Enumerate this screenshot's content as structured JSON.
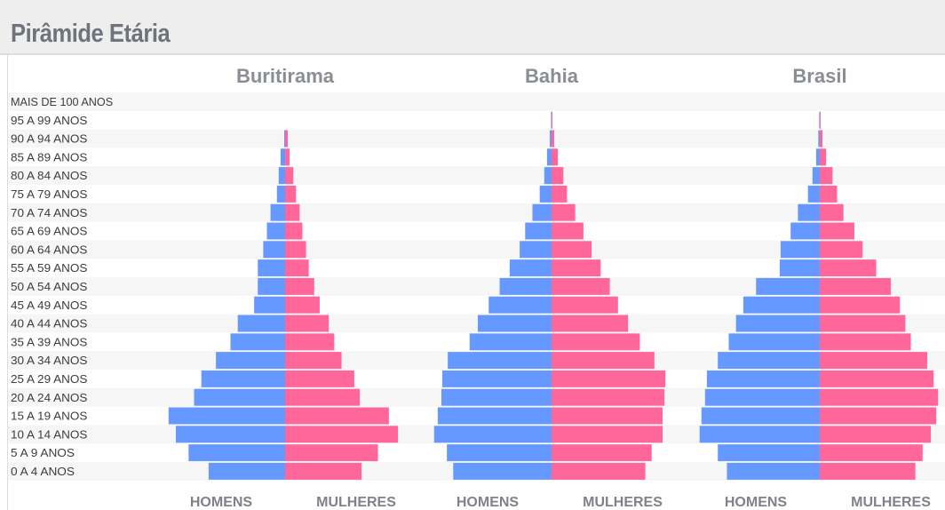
{
  "page_title": "Pirâmide Etária",
  "chart_data": {
    "type": "bar",
    "orientation": "horizontal-pyramid",
    "title": "Pirâmide Etária",
    "age_groups": [
      "MAIS DE 100 ANOS",
      "95 A 99 ANOS",
      "90 A 94 ANOS",
      "85 A 89 ANOS",
      "80 A 84 ANOS",
      "75 A 79 ANOS",
      "70 A 74 ANOS",
      "65 A 69 ANOS",
      "60 A 64 ANOS",
      "55 A 59 ANOS",
      "50 A 54 ANOS",
      "45 A 49 ANOS",
      "40 A 44 ANOS",
      "35 A 39 ANOS",
      "30 A 34 ANOS",
      "25 A 29 ANOS",
      "20 A 24 ANOS",
      "15 A 19 ANOS",
      "10 A 14 ANOS",
      "5 A 9 ANOS",
      "0 A 4 ANOS"
    ],
    "sex_labels": {
      "men": "HOMENS",
      "women": "MULHERES"
    },
    "colors": {
      "men": "#6699ff",
      "women": "#ff6699"
    },
    "unit": "% of population",
    "scale_max_percent": 7.6,
    "panels": [
      {
        "title": "Buritirama",
        "men": [
          0.0,
          0.0,
          0.05,
          0.25,
          0.35,
          0.45,
          0.8,
          1.0,
          1.2,
          1.5,
          1.5,
          1.7,
          2.6,
          3.0,
          3.8,
          4.6,
          5.0,
          6.4,
          6.0,
          5.3,
          4.2
        ],
        "women": [
          0.0,
          0.0,
          0.15,
          0.25,
          0.45,
          0.6,
          0.8,
          0.95,
          1.15,
          1.3,
          1.6,
          1.9,
          2.4,
          2.7,
          3.1,
          3.8,
          4.1,
          5.7,
          6.2,
          5.1,
          4.2
        ]
      },
      {
        "title": "Bahia",
        "men": [
          0.0,
          0.03,
          0.1,
          0.25,
          0.4,
          0.65,
          1.05,
          1.45,
          1.75,
          2.3,
          2.85,
          3.45,
          4.05,
          4.5,
          5.7,
          6.0,
          6.05,
          6.25,
          6.45,
          5.75,
          5.4
        ],
        "women": [
          0.0,
          0.05,
          0.15,
          0.35,
          0.65,
          0.85,
          1.3,
          1.75,
          2.2,
          2.7,
          3.2,
          3.65,
          4.2,
          4.85,
          5.65,
          6.25,
          6.2,
          6.1,
          6.1,
          5.5,
          5.15
        ]
      },
      {
        "title": "Brasil",
        "men": [
          0.0,
          0.03,
          0.08,
          0.2,
          0.4,
          0.65,
          1.2,
          1.6,
          2.15,
          2.2,
          3.5,
          4.2,
          4.6,
          5.0,
          5.6,
          6.2,
          6.3,
          6.5,
          6.6,
          5.6,
          5.1
        ],
        "women": [
          0.0,
          0.05,
          0.15,
          0.35,
          0.7,
          0.95,
          1.3,
          1.9,
          2.35,
          3.1,
          3.9,
          4.4,
          4.7,
          5.0,
          5.9,
          6.25,
          6.5,
          6.4,
          6.1,
          5.65,
          5.25
        ]
      }
    ]
  }
}
